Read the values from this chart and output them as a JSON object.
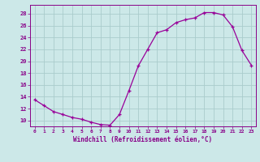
{
  "x": [
    0,
    1,
    2,
    3,
    4,
    5,
    6,
    7,
    8,
    9,
    10,
    11,
    12,
    13,
    14,
    15,
    16,
    17,
    18,
    19,
    20,
    21,
    22,
    23
  ],
  "y": [
    13.5,
    12.5,
    11.5,
    11.0,
    10.5,
    10.2,
    9.7,
    9.3,
    9.2,
    11.0,
    15.0,
    19.2,
    22.0,
    24.8,
    25.3,
    26.5,
    27.0,
    27.3,
    28.2,
    28.2,
    27.8,
    25.8,
    21.8,
    19.3
  ],
  "line_color": "#990099",
  "bg_color": "#cce8e8",
  "grid_color": "#aacccc",
  "tick_color": "#880088",
  "xlabel": "Windchill (Refroidissement éolien,°C)",
  "xlabel_color": "#880088",
  "ylabel_ticks": [
    10,
    12,
    14,
    16,
    18,
    20,
    22,
    24,
    26,
    28
  ],
  "ymin": 9.0,
  "ymax": 29.5,
  "xmin": -0.5,
  "xmax": 23.5
}
